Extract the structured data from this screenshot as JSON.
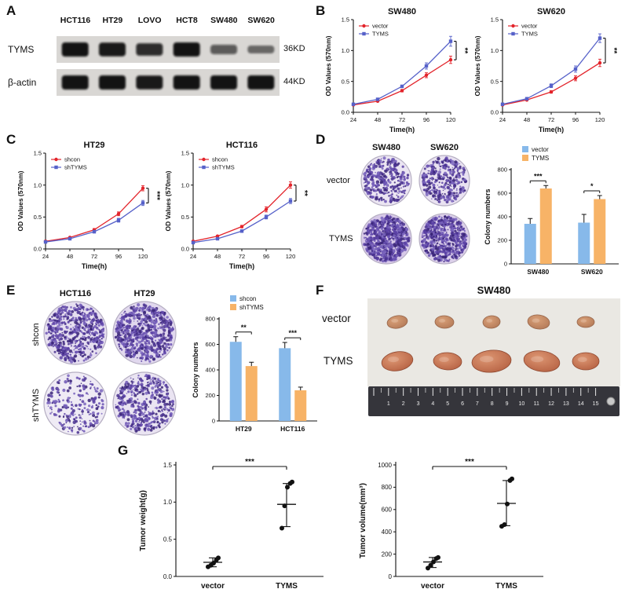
{
  "chart_data": [
    {
      "type": "line",
      "title": "SW480",
      "xlabel": "Time(h)",
      "ylabel": "OD Values (570nm)",
      "x": [
        24,
        48,
        72,
        96,
        120
      ],
      "ylim": [
        0,
        1.5
      ],
      "yticks": [
        0,
        0.5,
        1,
        1.5
      ],
      "ydecimals": 1,
      "series": [
        {
          "name": "vector",
          "color": "#e3242b",
          "marker": "circle",
          "values": [
            0.12,
            0.18,
            0.35,
            0.6,
            0.85
          ],
          "errors": [
            0.01,
            0.01,
            0.02,
            0.04,
            0.06
          ]
        },
        {
          "name": "TYMS",
          "color": "#5661c9",
          "marker": "square",
          "values": [
            0.13,
            0.21,
            0.42,
            0.75,
            1.15
          ],
          "errors": [
            0.01,
            0.02,
            0.02,
            0.05,
            0.08
          ]
        }
      ],
      "sig": "**",
      "legend_pos": "top-left"
    },
    {
      "type": "line",
      "title": "SW620",
      "xlabel": "Time(h)",
      "ylabel": "OD Values (570nm)",
      "x": [
        24,
        48,
        72,
        96,
        120
      ],
      "ylim": [
        0,
        1.5
      ],
      "yticks": [
        0,
        0.5,
        1,
        1.5
      ],
      "ydecimals": 1,
      "series": [
        {
          "name": "vector",
          "color": "#e3242b",
          "marker": "circle",
          "values": [
            0.12,
            0.2,
            0.33,
            0.55,
            0.8
          ],
          "errors": [
            0.01,
            0.01,
            0.02,
            0.04,
            0.06
          ]
        },
        {
          "name": "TYMS",
          "color": "#5661c9",
          "marker": "square",
          "values": [
            0.13,
            0.22,
            0.43,
            0.7,
            1.2
          ],
          "errors": [
            0.01,
            0.02,
            0.03,
            0.05,
            0.07
          ]
        }
      ],
      "sig": "**",
      "legend_pos": "top-left"
    },
    {
      "type": "line",
      "title": "HT29",
      "xlabel": "Time(h)",
      "ylabel": "OD Values (570nm)",
      "x": [
        24,
        48,
        72,
        96,
        120
      ],
      "ylim": [
        0,
        1.5
      ],
      "yticks": [
        0,
        0.5,
        1,
        1.5
      ],
      "ydecimals": 1,
      "series": [
        {
          "name": "shcon",
          "color": "#e3242b",
          "marker": "circle",
          "values": [
            0.12,
            0.18,
            0.3,
            0.55,
            0.95
          ],
          "errors": [
            0.01,
            0.01,
            0.02,
            0.03,
            0.04
          ]
        },
        {
          "name": "shTYMS",
          "color": "#5661c9",
          "marker": "square",
          "values": [
            0.11,
            0.16,
            0.27,
            0.45,
            0.72
          ],
          "errors": [
            0.01,
            0.01,
            0.02,
            0.03,
            0.04
          ]
        }
      ],
      "sig": "***",
      "legend_pos": "top-left"
    },
    {
      "type": "line",
      "title": "HCT116",
      "xlabel": "Time(h)",
      "ylabel": "OD Values (570nm)",
      "x": [
        24,
        48,
        72,
        96,
        120
      ],
      "ylim": [
        0,
        1.5
      ],
      "yticks": [
        0,
        0.5,
        1,
        1.5
      ],
      "ydecimals": 1,
      "series": [
        {
          "name": "shcon",
          "color": "#e3242b",
          "marker": "circle",
          "values": [
            0.12,
            0.2,
            0.35,
            0.62,
            1.0
          ],
          "errors": [
            0.01,
            0.01,
            0.02,
            0.04,
            0.05
          ]
        },
        {
          "name": "shTYMS",
          "color": "#5661c9",
          "marker": "square",
          "values": [
            0.1,
            0.16,
            0.28,
            0.5,
            0.75
          ],
          "errors": [
            0.01,
            0.01,
            0.02,
            0.03,
            0.04
          ]
        }
      ],
      "sig": "**",
      "legend_pos": "top-left"
    },
    {
      "type": "bar",
      "ylabel": "Colony numbers",
      "categories": [
        "SW480",
        "SW620"
      ],
      "ylim": [
        0,
        800
      ],
      "yticks": [
        0,
        200,
        400,
        600,
        800
      ],
      "series": [
        {
          "name": "vector",
          "color": "#87b9ea",
          "values": [
            340,
            350
          ],
          "errors": [
            45,
            70
          ]
        },
        {
          "name": "TYMS",
          "color": "#f7b367",
          "values": [
            640,
            550
          ],
          "errors": [
            25,
            30
          ]
        }
      ],
      "sig": [
        "***",
        "*"
      ],
      "legend_pos": "top-left"
    },
    {
      "type": "bar",
      "ylabel": "Colony numbers",
      "categories": [
        "HT29",
        "HCT116"
      ],
      "ylim": [
        0,
        800
      ],
      "yticks": [
        0,
        200,
        400,
        600,
        800
      ],
      "series": [
        {
          "name": "shcon",
          "color": "#87b9ea",
          "values": [
            620,
            570
          ],
          "errors": [
            40,
            45
          ]
        },
        {
          "name": "shTYMS",
          "color": "#f7b367",
          "values": [
            430,
            240
          ],
          "errors": [
            30,
            25
          ]
        }
      ],
      "sig": [
        "**",
        "***"
      ],
      "legend_pos": "top-left"
    },
    {
      "type": "scatter",
      "ylabel": "Tumor weight(g)",
      "categories": [
        "vector",
        "TYMS"
      ],
      "ylim": [
        0,
        1.5
      ],
      "yticks": [
        0,
        0.5,
        1,
        1.5
      ],
      "ydecimals": 1,
      "groups": [
        {
          "points": [
            0.13,
            0.15,
            0.18,
            0.22,
            0.25
          ],
          "center": 0.19,
          "lo": 0.13,
          "hi": 0.25
        },
        {
          "points": [
            0.65,
            0.95,
            1.2,
            1.25,
            1.27
          ],
          "center": 0.97,
          "lo": 0.67,
          "hi": 1.25
        }
      ],
      "sig": "***"
    },
    {
      "type": "scatter",
      "ylabel": "Tumor volume(mm³)",
      "categories": [
        "vector",
        "TYMS"
      ],
      "ylim": [
        0,
        1000
      ],
      "yticks": [
        0,
        200,
        400,
        600,
        800,
        1000
      ],
      "ydecimals": 0,
      "groups": [
        {
          "points": [
            75,
            100,
            130,
            160,
            170
          ],
          "center": 130,
          "lo": 80,
          "hi": 170
        },
        {
          "points": [
            450,
            465,
            650,
            860,
            875
          ],
          "center": 655,
          "lo": 455,
          "hi": 860
        }
      ],
      "sig": "***"
    }
  ],
  "panels": {
    "A": {
      "label": "A",
      "cell_lines": [
        "HCT116",
        "HT29",
        "LOVO",
        "HCT8",
        "SW480",
        "SW620"
      ],
      "rows": [
        {
          "protein": "TYMS",
          "size": "36KD",
          "bands": [
            1.0,
            0.95,
            0.8,
            1.0,
            0.45,
            0.28
          ]
        },
        {
          "protein": "β-actin",
          "size": "44KD",
          "bands": [
            1.0,
            1.0,
            0.95,
            1.0,
            1.0,
            1.0
          ]
        }
      ]
    },
    "B": {
      "label": "B"
    },
    "C": {
      "label": "C"
    },
    "D": {
      "label": "D",
      "colony": {
        "col_headers": [
          "SW480",
          "SW620"
        ],
        "row_labels": [
          "vector",
          "TYMS"
        ],
        "dishes": [
          [
            {
              "count": 340,
              "bg": "#ebe5f2"
            },
            {
              "count": 360,
              "bg": "#e9e2f1"
            }
          ],
          [
            {
              "count": 680,
              "bg": "#d7c9e8"
            },
            {
              "count": 580,
              "bg": "#dcd0ea"
            }
          ]
        ]
      }
    },
    "E": {
      "label": "E",
      "colony": {
        "col_headers": [
          "HCT116",
          "HT29"
        ],
        "row_labels": [
          "shcon",
          "shTYMS"
        ],
        "dishes": [
          [
            {
              "count": 560,
              "bg": "#e6dff0"
            },
            {
              "count": 650,
              "bg": "#e1d8ee"
            }
          ],
          [
            {
              "count": 230,
              "bg": "#efebf5"
            },
            {
              "count": 430,
              "bg": "#eae4f2"
            }
          ]
        ]
      }
    },
    "F": {
      "label": "F",
      "title": "SW480",
      "row_labels": [
        "vector",
        "TYMS"
      ],
      "tumors": [
        {
          "fill": "tan",
          "sizes": [
            [
              13,
              8
            ],
            [
              12,
              8
            ],
            [
              11,
              8
            ],
            [
              14,
              9
            ],
            [
              11,
              7
            ]
          ]
        },
        {
          "fill": "red",
          "sizes": [
            [
              20,
              12
            ],
            [
              18,
              11
            ],
            [
              25,
              14
            ],
            [
              23,
              13
            ],
            [
              17,
              11
            ]
          ]
        }
      ],
      "ruler_numbers": [
        "1",
        "2",
        "3",
        "4",
        "5",
        "6",
        "7",
        "8",
        "9",
        "10",
        "11",
        "12",
        "13",
        "14",
        "15"
      ]
    },
    "G": {
      "label": "G"
    }
  }
}
